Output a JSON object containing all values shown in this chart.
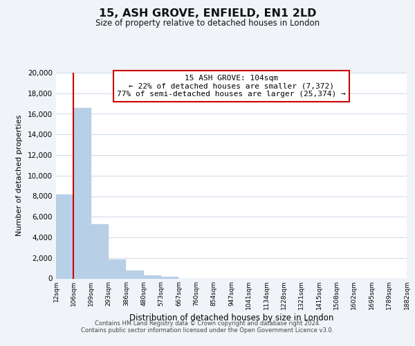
{
  "title": "15, ASH GROVE, ENFIELD, EN1 2LD",
  "subtitle": "Size of property relative to detached houses in London",
  "xlabel": "Distribution of detached houses by size in London",
  "ylabel": "Number of detached properties",
  "bin_labels": [
    "12sqm",
    "106sqm",
    "199sqm",
    "293sqm",
    "386sqm",
    "480sqm",
    "573sqm",
    "667sqm",
    "760sqm",
    "854sqm",
    "947sqm",
    "1041sqm",
    "1134sqm",
    "1228sqm",
    "1321sqm",
    "1415sqm",
    "1508sqm",
    "1602sqm",
    "1695sqm",
    "1789sqm",
    "1882sqm"
  ],
  "bar_values": [
    8200,
    16600,
    5300,
    1850,
    750,
    280,
    200,
    0,
    0,
    0,
    0,
    0,
    0,
    0,
    0,
    0,
    0,
    0,
    0,
    0
  ],
  "bar_color": "#b8cfe8",
  "bar_edge_color": "#b8cfe8",
  "fig_bg_color": "#f0f4f8",
  "plot_bg_color": "#ffffff",
  "grid_color": "#d0dce8",
  "ylim": [
    0,
    20000
  ],
  "yticks": [
    0,
    2000,
    4000,
    6000,
    8000,
    10000,
    12000,
    14000,
    16000,
    18000,
    20000
  ],
  "annotation_line1": "15 ASH GROVE: 104sqm",
  "annotation_line2": "← 22% of detached houses are smaller (7,372)",
  "annotation_line3": "77% of semi-detached houses are larger (25,374) →",
  "annotation_box_color": "#ffffff",
  "annotation_box_edgecolor": "#cc0000",
  "vline_color": "#cc0000",
  "footer_line1": "Contains HM Land Registry data © Crown copyright and database right 2024.",
  "footer_line2": "Contains public sector information licensed under the Open Government Licence v3.0.",
  "num_bins": 20
}
